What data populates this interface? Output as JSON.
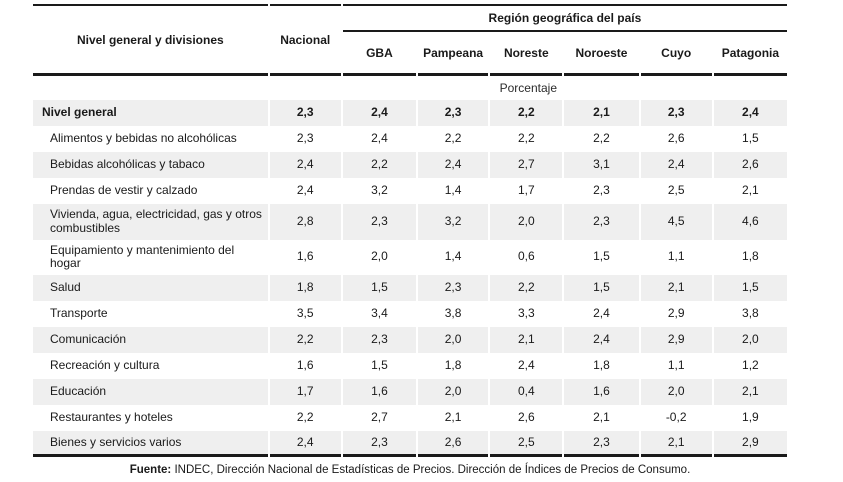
{
  "table": {
    "col1_header": "Nivel general y divisiones",
    "nacional_header": "Nacional",
    "region_group_header": "Región geográfica del país",
    "region_columns": [
      "GBA",
      "Pampeana",
      "Noreste",
      "Noroeste",
      "Cuyo",
      "Patagonia"
    ],
    "unit_row": "Porcentaje",
    "rows": [
      {
        "label": "Nivel general",
        "bold": true,
        "values": [
          "2,3",
          "2,4",
          "2,3",
          "2,2",
          "2,1",
          "2,3",
          "2,4"
        ]
      },
      {
        "label": "Alimentos y bebidas no alcohólicas",
        "bold": false,
        "values": [
          "2,3",
          "2,4",
          "2,2",
          "2,2",
          "2,2",
          "2,6",
          "1,5"
        ]
      },
      {
        "label": "Bebidas alcohólicas y tabaco",
        "bold": false,
        "values": [
          "2,4",
          "2,2",
          "2,4",
          "2,7",
          "3,1",
          "2,4",
          "2,6"
        ]
      },
      {
        "label": "Prendas de vestir y calzado",
        "bold": false,
        "values": [
          "2,4",
          "3,2",
          "1,4",
          "1,7",
          "2,3",
          "2,5",
          "2,1"
        ]
      },
      {
        "label": "Vivienda, agua, electricidad, gas y otros combustibles",
        "bold": false,
        "values": [
          "2,8",
          "2,3",
          "3,2",
          "2,0",
          "2,3",
          "4,5",
          "4,6"
        ]
      },
      {
        "label": "Equipamiento y mantenimiento del hogar",
        "bold": false,
        "values": [
          "1,6",
          "2,0",
          "1,4",
          "0,6",
          "1,5",
          "1,1",
          "1,8"
        ]
      },
      {
        "label": "Salud",
        "bold": false,
        "values": [
          "1,8",
          "1,5",
          "2,3",
          "2,2",
          "1,5",
          "2,1",
          "1,5"
        ]
      },
      {
        "label": "Transporte",
        "bold": false,
        "values": [
          "3,5",
          "3,4",
          "3,8",
          "3,3",
          "2,4",
          "2,9",
          "3,8"
        ]
      },
      {
        "label": "Comunicación",
        "bold": false,
        "values": [
          "2,2",
          "2,3",
          "2,0",
          "2,1",
          "2,4",
          "2,9",
          "2,0"
        ]
      },
      {
        "label": "Recreación y cultura",
        "bold": false,
        "values": [
          "1,6",
          "1,5",
          "1,8",
          "2,4",
          "1,8",
          "1,1",
          "1,2"
        ]
      },
      {
        "label": "Educación",
        "bold": false,
        "values": [
          "1,7",
          "1,6",
          "2,0",
          "0,4",
          "1,6",
          "2,0",
          "2,1"
        ]
      },
      {
        "label": "Restaurantes y hoteles",
        "bold": false,
        "values": [
          "2,2",
          "2,7",
          "2,1",
          "2,6",
          "2,1",
          "-0,2",
          "1,9"
        ]
      },
      {
        "label": "Bienes y servicios varios",
        "bold": false,
        "values": [
          "2,4",
          "2,3",
          "2,6",
          "2,5",
          "2,3",
          "2,1",
          "2,9"
        ]
      }
    ]
  },
  "footer": {
    "source_label": "Fuente:",
    "source_text": " INDEC, Dirección Nacional de Estadísticas de Precios. Dirección de Índices de Precios de Consumo."
  },
  "colors": {
    "text": "#1a1a1a",
    "rule": "#1a1a1a",
    "shaded_row": "#efefef",
    "background": "#ffffff"
  }
}
